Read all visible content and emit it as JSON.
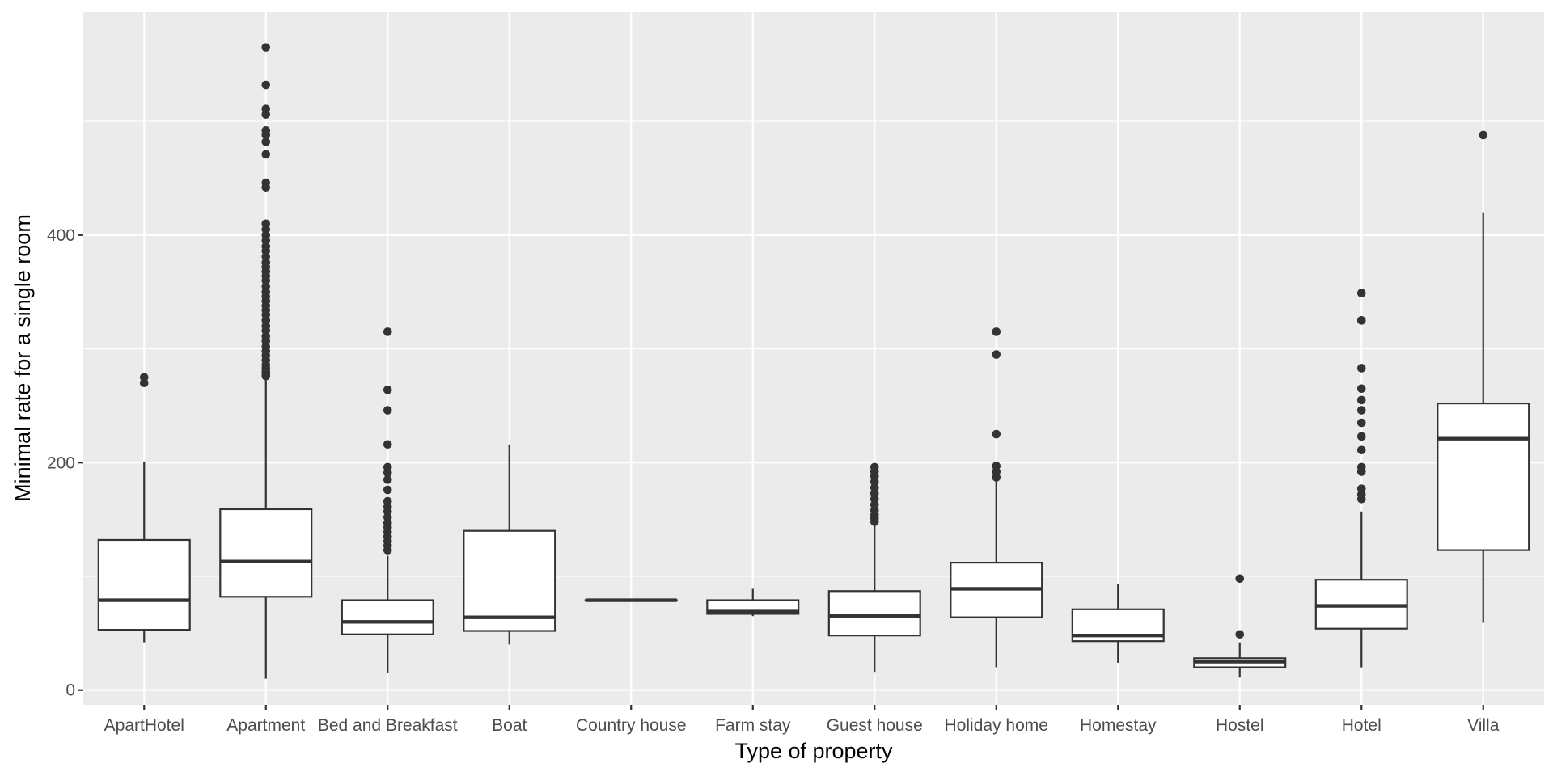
{
  "chart_data": {
    "type": "boxplot",
    "xlabel": "Type of property",
    "ylabel": "Minimal rate for a single room",
    "ylim": [
      -13,
      596
    ],
    "yticks": [
      0,
      200,
      400
    ],
    "grid": true,
    "colors": {
      "panel": "#ebebeb",
      "grid": "#ffffff",
      "box_fill": "#ffffff",
      "line": "#333333",
      "tick_text": "#4d4d4d"
    },
    "categories": [
      "ApartHotel",
      "Apartment",
      "Bed and Breakfast",
      "Boat",
      "Country house",
      "Farm stay",
      "Guest house",
      "Holiday home",
      "Homestay",
      "Hostel",
      "Hotel",
      "Villa"
    ],
    "boxes": [
      {
        "category": "ApartHotel",
        "whisker_low": 42,
        "q1": 53,
        "median": 79,
        "q3": 132,
        "whisker_high": 201,
        "outliers": [
          270,
          275
        ]
      },
      {
        "category": "Apartment",
        "whisker_low": 10,
        "q1": 82,
        "median": 113,
        "q3": 159,
        "whisker_high": 274,
        "outliers": [
          276,
          278,
          280,
          283,
          286,
          290,
          294,
          298,
          302,
          307,
          311,
          316,
          320,
          325,
          330,
          334,
          338,
          342,
          346,
          350,
          355,
          360,
          364,
          368,
          372,
          376,
          381,
          386,
          390,
          395,
          400,
          405,
          410,
          442,
          446,
          471,
          482,
          488,
          492,
          506,
          511,
          532,
          565
        ]
      },
      {
        "category": "Bed and Breakfast",
        "whisker_low": 15,
        "q1": 49,
        "median": 60,
        "q3": 79,
        "whisker_high": 118,
        "outliers": [
          123,
          127,
          131,
          135,
          139,
          143,
          147,
          152,
          157,
          161,
          166,
          176,
          185,
          191,
          196,
          216,
          246,
          264,
          315
        ]
      },
      {
        "category": "Boat",
        "whisker_low": 40,
        "q1": 52,
        "median": 64,
        "q3": 140,
        "whisker_high": 216,
        "outliers": []
      },
      {
        "category": "Country house",
        "whisker_low": 79,
        "q1": 79,
        "median": 79,
        "q3": 79,
        "whisker_high": 79,
        "outliers": []
      },
      {
        "category": "Farm stay",
        "whisker_low": 65,
        "q1": 67,
        "median": 69,
        "q3": 79,
        "whisker_high": 89,
        "outliers": []
      },
      {
        "category": "Guest house",
        "whisker_low": 16,
        "q1": 48,
        "median": 65,
        "q3": 87,
        "whisker_high": 145,
        "outliers": [
          148,
          151,
          154,
          158,
          163,
          168,
          173,
          178,
          183,
          188,
          192,
          196
        ]
      },
      {
        "category": "Holiday home",
        "whisker_low": 20,
        "q1": 64,
        "median": 89,
        "q3": 112,
        "whisker_high": 184,
        "outliers": [
          187,
          192,
          197,
          225,
          295,
          315
        ]
      },
      {
        "category": "Homestay",
        "whisker_low": 24,
        "q1": 43,
        "median": 48,
        "q3": 71,
        "whisker_high": 93,
        "outliers": []
      },
      {
        "category": "Hostel",
        "whisker_low": 11,
        "q1": 20,
        "median": 25,
        "q3": 28,
        "whisker_high": 42,
        "outliers": [
          49,
          98
        ]
      },
      {
        "category": "Hotel",
        "whisker_low": 20,
        "q1": 54,
        "median": 74,
        "q3": 97,
        "whisker_high": 157,
        "outliers": [
          168,
          172,
          177,
          192,
          196,
          211,
          223,
          235,
          246,
          255,
          265,
          283,
          325,
          349
        ]
      },
      {
        "category": "Villa",
        "whisker_low": 59,
        "q1": 123,
        "median": 221,
        "q3": 252,
        "whisker_high": 420,
        "outliers": [
          488
        ]
      }
    ]
  }
}
